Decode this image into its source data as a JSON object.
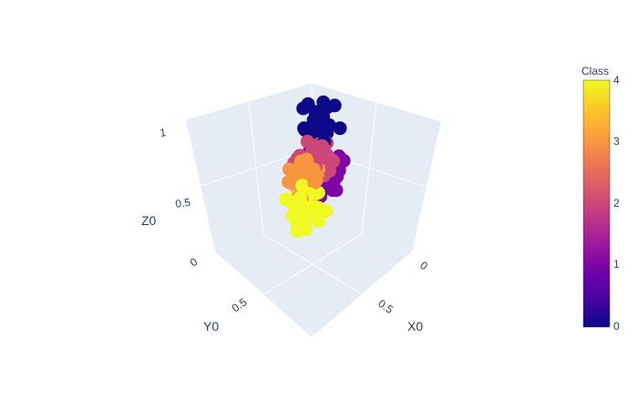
{
  "chart_data": {
    "type": "scatter3d",
    "axes": {
      "x": {
        "title": "X0",
        "ticks": [
          "0",
          "0.5"
        ],
        "range": [
          0,
          1
        ]
      },
      "y": {
        "title": "Y0",
        "ticks": [
          "0",
          "0.5"
        ],
        "range": [
          0,
          1
        ]
      },
      "z": {
        "title": "Z0",
        "ticks": [
          "0.5",
          "1"
        ],
        "range": [
          0,
          1
        ]
      }
    },
    "colorbar": {
      "title": "Class",
      "ticks": [
        "0",
        "1",
        "2",
        "3",
        "4"
      ],
      "range": [
        0,
        4
      ],
      "colorscale": [
        "#0d0887",
        "#46039f",
        "#7201a8",
        "#9c179e",
        "#bd3786",
        "#d8576b",
        "#ed7953",
        "#fb9f3a",
        "#fdca26",
        "#f0f921"
      ]
    },
    "point_groups": [
      {
        "class": 1,
        "center": [
          0.25,
          0.15,
          0.45
        ],
        "count": 130
      },
      {
        "class": 4,
        "center": [
          0.55,
          0.62,
          0.35
        ],
        "count": 60
      },
      {
        "class": 3,
        "center": [
          0.5,
          0.55,
          0.55
        ],
        "count": 45
      },
      {
        "class": 2,
        "center": [
          0.45,
          0.4,
          0.65
        ],
        "count": 45
      },
      {
        "class": 0,
        "center": [
          0.35,
          0.3,
          0.85
        ],
        "count": 30
      }
    ],
    "grid": true
  }
}
